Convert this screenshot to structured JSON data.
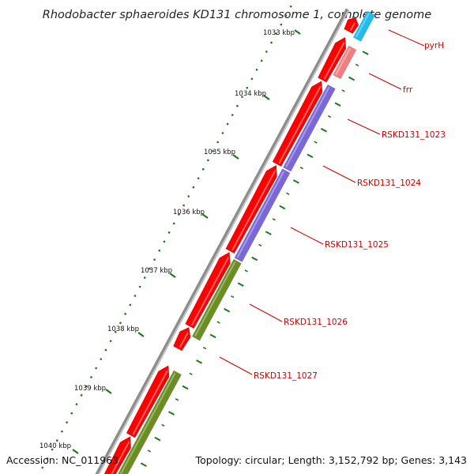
{
  "title": "Rhodobacter sphaeroides KD131 chromosome 1, complete genome",
  "footer": {
    "accession": "Accession: NC_011963",
    "summary": "Topology: circular; Length: 3,152,792 bp; Genes: 3,143"
  },
  "colors": {
    "backbone": "#8c8c8c",
    "forward_cds": "#ff0000",
    "trna_like": "#f08080",
    "blue_feature": "#22bbee",
    "purple_feature": "#7b68d8",
    "green_feature": "#6b8e23",
    "tick_green": "#1a7a1a",
    "label_red": "#cc0000"
  },
  "kbp_ticks": [
    {
      "label": "1033 kbp"
    },
    {
      "label": "1034 kbp"
    },
    {
      "label": "1035 kbp"
    },
    {
      "label": "1036 kbp"
    },
    {
      "label": "1037 kbp"
    },
    {
      "label": "1038 kbp"
    },
    {
      "label": "1039 kbp"
    },
    {
      "label": "1040 kbp"
    }
  ],
  "gene_labels": [
    {
      "label": "pyrH"
    },
    {
      "label": "frr"
    },
    {
      "label": "RSKD131_1023"
    },
    {
      "label": "RSKD131_1024"
    },
    {
      "label": "RSKD131_1025"
    },
    {
      "label": "RSKD131_1026"
    },
    {
      "label": "RSKD131_1027"
    }
  ]
}
